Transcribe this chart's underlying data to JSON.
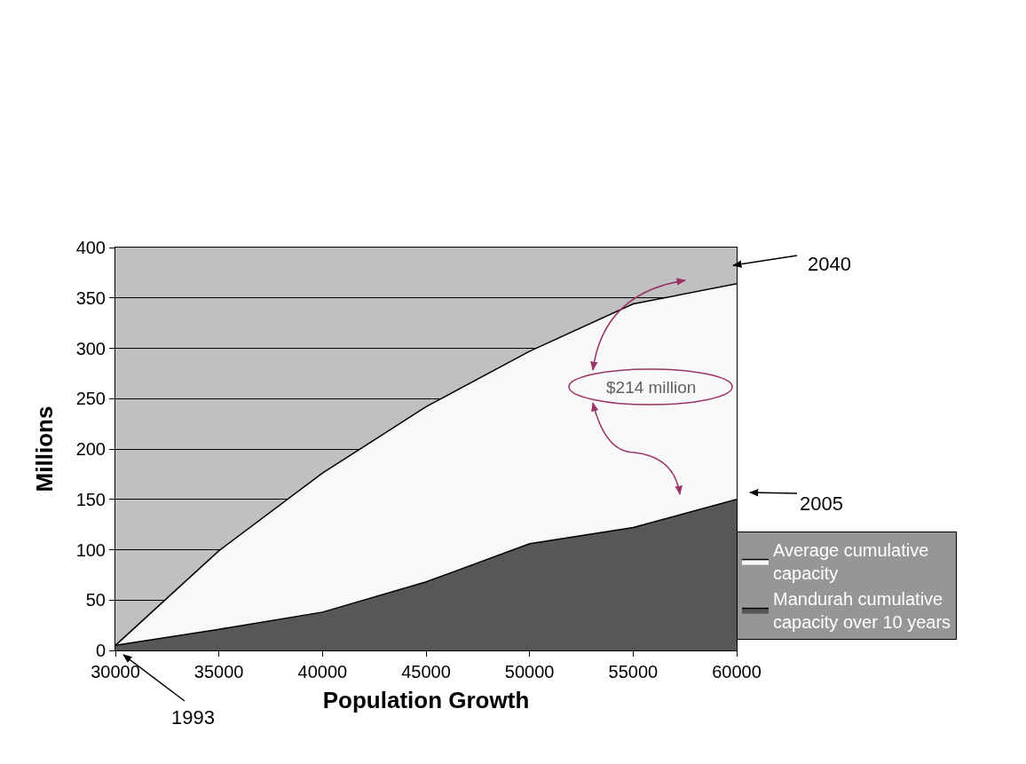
{
  "chart_data": {
    "type": "area",
    "xlabel": "Population Growth",
    "ylabel": "Millions",
    "x": [
      30000,
      35000,
      40000,
      45000,
      50000,
      55000,
      60000
    ],
    "series": [
      {
        "name": "Average cumulative capacity",
        "color": "#f8f8f8",
        "values": [
          5,
          99,
          176,
          242,
          297,
          344,
          364
        ]
      },
      {
        "name": "Mandurah cumulative capacity over 10 years",
        "color": "#575757",
        "values": [
          5,
          21,
          38,
          68,
          106,
          122,
          150
        ]
      }
    ],
    "xlim": [
      30000,
      60000
    ],
    "xticks": [
      30000,
      35000,
      40000,
      45000,
      50000,
      55000,
      60000
    ],
    "ylim": [
      0,
      400
    ],
    "yticks": [
      0,
      50,
      100,
      150,
      200,
      250,
      300,
      350,
      400
    ],
    "grid": "y",
    "legend": "bottom right",
    "annotations": [
      "1993",
      "2040",
      "2005",
      "$214 million"
    ]
  }
}
